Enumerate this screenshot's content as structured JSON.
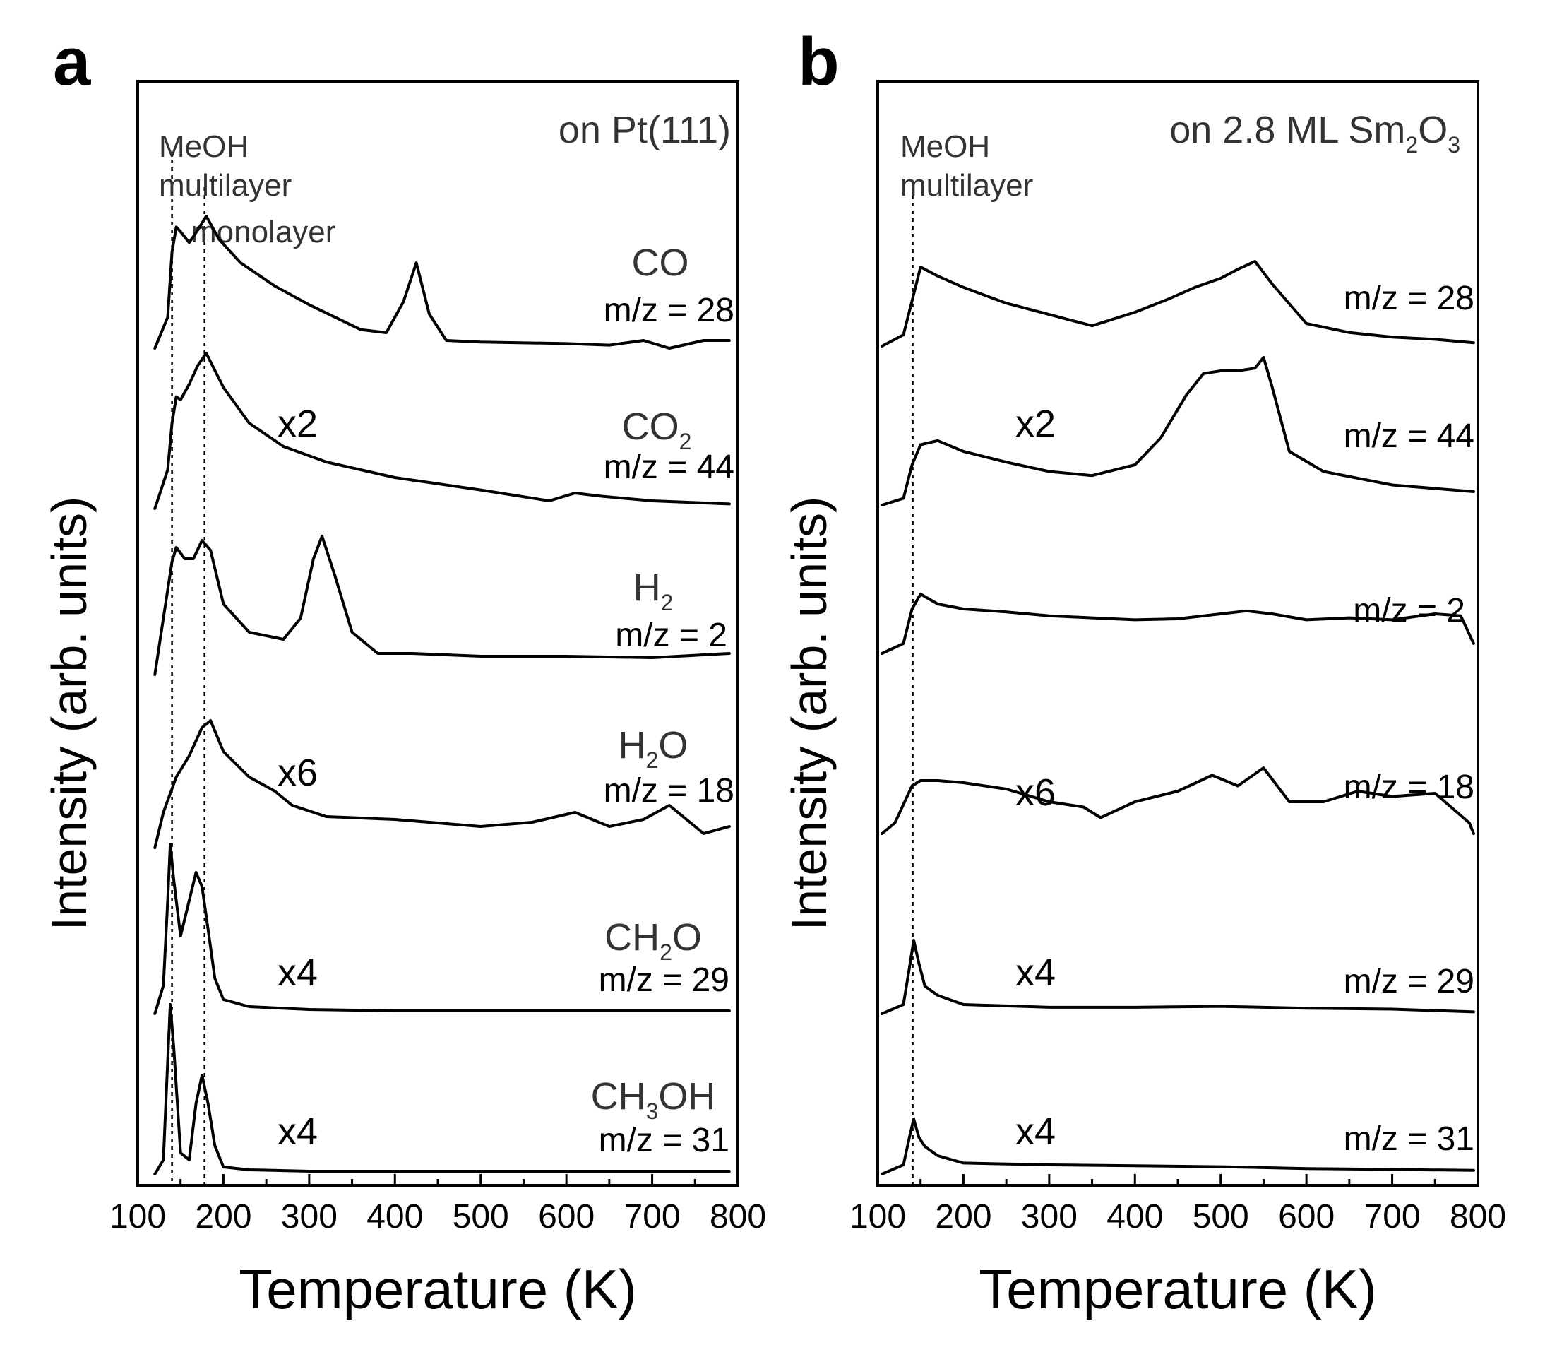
{
  "panels": [
    {
      "panel_label": "a",
      "title": "on Pt(111)",
      "annotation_lines": [
        "MeOH",
        "multilayer",
        "monolayer"
      ],
      "ylabel": "Intensity (arb. units)",
      "xlabel": "Temperature (K)",
      "traces": [
        {
          "species": "CO",
          "species_sub": "",
          "species_tail": "",
          "mz_label": "m/z = 28",
          "multiplier": "",
          "peaks_K": [
            140,
            180,
            425
          ]
        },
        {
          "species": "CO",
          "species_sub": "2",
          "species_tail": "",
          "mz_label": "m/z = 44",
          "multiplier": "x2",
          "peaks_K": [
            140,
            180
          ]
        },
        {
          "species": "H",
          "species_sub": "2",
          "species_tail": "",
          "mz_label": "m/z = 2",
          "multiplier": "",
          "peaks_K": [
            145,
            175,
            315
          ]
        },
        {
          "species": "H",
          "species_sub": "2",
          "species_tail": "O",
          "mz_label": "m/z = 18",
          "multiplier": "x6",
          "peaks_K": [
            180,
            620,
            720
          ]
        },
        {
          "species": "CH",
          "species_sub": "2",
          "species_tail": "O",
          "mz_label": "m/z = 29",
          "multiplier": "x4",
          "peaks_K": [
            138,
            175
          ]
        },
        {
          "species": "CH",
          "species_sub": "3",
          "species_tail": "OH",
          "mz_label": "m/z = 31",
          "multiplier": "x4",
          "peaks_K": [
            138,
            175
          ]
        }
      ]
    },
    {
      "panel_label": "b",
      "title_main": "on 2.8 ML Sm",
      "title_sub1": "2",
      "title_mid": "O",
      "title_sub2": "3",
      "annotation_lines": [
        "MeOH",
        "multilayer"
      ],
      "ylabel": "Intensity (arb. units)",
      "xlabel": "Temperature (K)",
      "traces": [
        {
          "mz_label": "m/z = 28",
          "multiplier": "",
          "peaks_K": [
            150,
            480,
            540
          ]
        },
        {
          "mz_label": "m/z = 44",
          "multiplier": "x2",
          "peaks_K": [
            170,
            490,
            545
          ]
        },
        {
          "mz_label": "m/z = 2",
          "multiplier": "",
          "peaks_K": [
            150,
            530
          ]
        },
        {
          "mz_label": "m/z = 18",
          "multiplier": "x6",
          "peaks_K": [
            150,
            490,
            550
          ]
        },
        {
          "mz_label": "m/z = 29",
          "multiplier": "x4",
          "peaks_K": [
            142
          ]
        },
        {
          "mz_label": "m/z = 31",
          "multiplier": "x4",
          "peaks_K": [
            142
          ]
        }
      ]
    }
  ],
  "chart_data": [
    {
      "type": "line",
      "title": "on Pt(111)",
      "xlabel": "Temperature (K)",
      "ylabel": "Intensity (arb. units)",
      "xlim": [
        100,
        800
      ],
      "xticks": [
        100,
        200,
        300,
        400,
        500,
        600,
        700,
        800
      ],
      "reference_lines_K": [
        138,
        176
      ],
      "series": [
        {
          "name": "CO m/z = 28",
          "x": [
            120,
            135,
            140,
            145,
            150,
            160,
            170,
            180,
            195,
            220,
            260,
            300,
            360,
            390,
            410,
            425,
            440,
            460,
            500,
            600,
            650,
            690,
            720,
            760,
            790
          ],
          "y": [
            0.0,
            0.2,
            0.62,
            0.78,
            0.75,
            0.68,
            0.76,
            0.85,
            0.7,
            0.55,
            0.4,
            0.28,
            0.12,
            0.1,
            0.3,
            0.55,
            0.22,
            0.05,
            0.04,
            0.03,
            0.02,
            0.05,
            0.0,
            0.05,
            0.05
          ]
        },
        {
          "name": "CO2 m/z = 44",
          "x": [
            120,
            135,
            140,
            145,
            150,
            160,
            170,
            180,
            200,
            230,
            270,
            320,
            400,
            500,
            580,
            610,
            640,
            700,
            790
          ],
          "y": [
            0.0,
            0.25,
            0.55,
            0.72,
            0.7,
            0.8,
            0.92,
            1.0,
            0.78,
            0.55,
            0.4,
            0.3,
            0.2,
            0.12,
            0.05,
            0.1,
            0.08,
            0.05,
            0.03
          ]
        },
        {
          "name": "H2 m/z = 2",
          "x": [
            120,
            130,
            140,
            145,
            155,
            165,
            175,
            185,
            200,
            230,
            270,
            290,
            305,
            315,
            330,
            350,
            380,
            420,
            500,
            600,
            700,
            790
          ],
          "y": [
            -0.1,
            0.3,
            0.7,
            0.8,
            0.72,
            0.72,
            0.85,
            0.78,
            0.4,
            0.2,
            0.15,
            0.3,
            0.72,
            0.88,
            0.6,
            0.2,
            0.05,
            0.05,
            0.03,
            0.03,
            0.02,
            0.05
          ]
        },
        {
          "name": "H2O m/z = 18",
          "x": [
            120,
            130,
            145,
            160,
            175,
            185,
            200,
            230,
            260,
            280,
            320,
            400,
            500,
            560,
            610,
            650,
            690,
            720,
            760,
            790
          ],
          "y": [
            -0.1,
            0.15,
            0.4,
            0.55,
            0.75,
            0.8,
            0.58,
            0.4,
            0.3,
            0.2,
            0.12,
            0.1,
            0.05,
            0.08,
            0.15,
            0.05,
            0.1,
            0.2,
            0.0,
            0.05
          ]
        },
        {
          "name": "CH2O m/z = 29",
          "x": [
            120,
            130,
            135,
            138,
            142,
            150,
            160,
            168,
            175,
            182,
            190,
            200,
            230,
            300,
            400,
            500,
            600,
            700,
            790
          ],
          "y": [
            0.0,
            0.2,
            0.8,
            1.2,
            0.95,
            0.55,
            0.8,
            1.0,
            0.9,
            0.6,
            0.25,
            0.1,
            0.05,
            0.03,
            0.02,
            0.02,
            0.02,
            0.02,
            0.02
          ]
        },
        {
          "name": "CH3OH m/z = 31",
          "x": [
            120,
            130,
            135,
            138,
            142,
            150,
            160,
            168,
            175,
            182,
            190,
            200,
            230,
            300,
            400,
            500,
            600,
            700,
            790
          ],
          "y": [
            0.0,
            0.1,
            0.8,
            1.2,
            0.9,
            0.15,
            0.1,
            0.5,
            0.7,
            0.5,
            0.2,
            0.05,
            0.03,
            0.02,
            0.02,
            0.02,
            0.02,
            0.02,
            0.02
          ]
        }
      ]
    },
    {
      "type": "line",
      "title": "on 2.8 ML Sm2O3",
      "xlabel": "Temperature (K)",
      "ylabel": "Intensity (arb. units)",
      "xlim": [
        100,
        800
      ],
      "xticks": [
        100,
        200,
        300,
        400,
        500,
        600,
        700,
        800
      ],
      "reference_lines_K": [
        142
      ],
      "series": [
        {
          "name": "m/z = 28",
          "x": [
            105,
            130,
            140,
            150,
            170,
            200,
            250,
            300,
            350,
            400,
            440,
            470,
            500,
            520,
            540,
            560,
            600,
            650,
            700,
            750,
            795
          ],
          "y": [
            0.0,
            0.1,
            0.4,
            0.7,
            0.62,
            0.52,
            0.38,
            0.28,
            0.18,
            0.3,
            0.42,
            0.52,
            0.6,
            0.68,
            0.75,
            0.55,
            0.2,
            0.12,
            0.08,
            0.06,
            0.03
          ]
        },
        {
          "name": "m/z = 44",
          "x": [
            105,
            130,
            140,
            150,
            170,
            200,
            250,
            300,
            350,
            400,
            430,
            460,
            480,
            500,
            520,
            540,
            550,
            560,
            580,
            620,
            700,
            795
          ],
          "y": [
            0.0,
            0.05,
            0.3,
            0.45,
            0.48,
            0.4,
            0.32,
            0.25,
            0.22,
            0.3,
            0.5,
            0.82,
            0.98,
            1.0,
            1.0,
            1.02,
            1.1,
            0.88,
            0.4,
            0.25,
            0.15,
            0.1
          ]
        },
        {
          "name": "m/z = 2",
          "x": [
            105,
            130,
            140,
            150,
            170,
            200,
            250,
            300,
            350,
            400,
            450,
            500,
            530,
            560,
            600,
            650,
            700,
            750,
            780,
            795
          ],
          "y": [
            0.0,
            0.1,
            0.45,
            0.6,
            0.5,
            0.45,
            0.42,
            0.38,
            0.36,
            0.34,
            0.35,
            0.4,
            0.43,
            0.4,
            0.34,
            0.36,
            0.34,
            0.4,
            0.38,
            0.1
          ]
        },
        {
          "name": "m/z = 18",
          "x": [
            105,
            120,
            140,
            150,
            170,
            200,
            250,
            300,
            340,
            360,
            400,
            450,
            490,
            520,
            550,
            580,
            620,
            660,
            700,
            750,
            790,
            795
          ],
          "y": [
            0.0,
            0.1,
            0.45,
            0.5,
            0.5,
            0.48,
            0.42,
            0.3,
            0.25,
            0.15,
            0.3,
            0.4,
            0.55,
            0.45,
            0.62,
            0.3,
            0.3,
            0.4,
            0.35,
            0.38,
            0.1,
            0.0
          ]
        },
        {
          "name": "m/z = 29",
          "x": [
            105,
            130,
            137,
            142,
            148,
            155,
            170,
            200,
            300,
            400,
            500,
            600,
            700,
            795
          ],
          "y": [
            0.0,
            0.1,
            0.5,
            0.8,
            0.55,
            0.3,
            0.2,
            0.1,
            0.07,
            0.07,
            0.08,
            0.06,
            0.05,
            0.02
          ]
        },
        {
          "name": "m/z = 31",
          "x": [
            105,
            130,
            137,
            142,
            148,
            155,
            170,
            200,
            300,
            400,
            500,
            600,
            700,
            795
          ],
          "y": [
            0.0,
            0.1,
            0.4,
            0.6,
            0.4,
            0.3,
            0.2,
            0.12,
            0.1,
            0.09,
            0.08,
            0.06,
            0.05,
            0.04
          ]
        }
      ]
    }
  ]
}
